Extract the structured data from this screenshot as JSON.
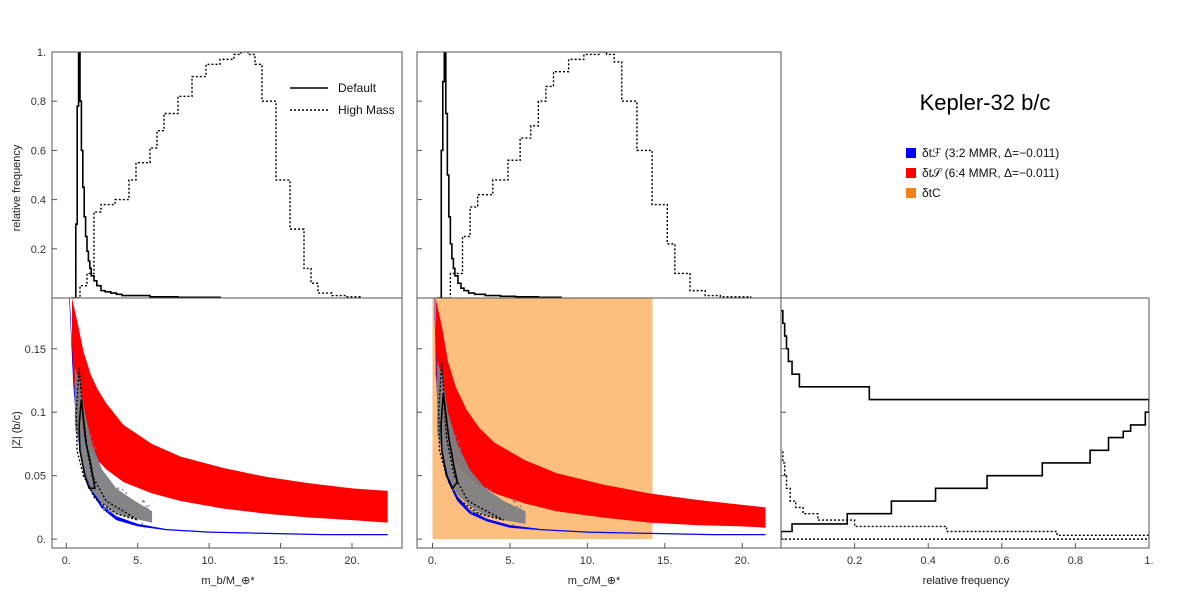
{
  "figure": {
    "title": "Kepler-32 b/c",
    "colors": {
      "red": "#ff0000",
      "blue": "#0000ff",
      "orange_fill": "#fdbf80",
      "orange_swatch": "#f4801a",
      "scatter": "#808080",
      "frame": "#555555"
    },
    "legend_right": [
      {
        "label": "δtℱ (3:2 MMR, Δ=−0.011)",
        "color": "#0000ff"
      },
      {
        "label": "δt𝒮 (6:4 MMR, Δ=−0.011)",
        "color": "#ff0000"
      },
      {
        "label": "δtC",
        "color": "#f4801a"
      }
    ]
  },
  "chart_data": [
    {
      "id": "hist-mb",
      "type": "line",
      "title": "",
      "xlabel": "",
      "ylabel": "relative frequency",
      "xlim": [
        -1,
        24
      ],
      "ylim": [
        0,
        1
      ],
      "yticks": [
        "0.2",
        "0.4",
        "0.6",
        "0.8",
        "1."
      ],
      "legend": [
        "Default",
        "High Mass"
      ],
      "series": [
        {
          "name": "Default",
          "style": "solid",
          "x": [
            0.4,
            0.7,
            0.8,
            0.9,
            1.0,
            1.1,
            1.2,
            1.3,
            1.4,
            1.5,
            1.6,
            1.7,
            1.8,
            2.0,
            2.2,
            2.5,
            2.8,
            3.2,
            3.6,
            4.0,
            5.0,
            6.0,
            8.0,
            11.0
          ],
          "values": [
            0,
            0.3,
            0.78,
            1.0,
            0.8,
            0.6,
            0.45,
            0.33,
            0.25,
            0.19,
            0.15,
            0.12,
            0.09,
            0.07,
            0.05,
            0.03,
            0.025,
            0.02,
            0.015,
            0.01,
            0.01,
            0.005,
            0.003,
            0.002
          ]
        },
        {
          "name": "High Mass",
          "style": "dotted",
          "x": [
            0.8,
            1.0,
            1.5,
            2.0,
            2.5,
            3.5,
            4.5,
            5.0,
            6.0,
            6.5,
            7.0,
            8.0,
            9.0,
            10.0,
            11.0,
            12.0,
            12.5,
            13.0,
            13.5,
            14.0,
            15.0,
            16.0,
            17.0,
            17.5,
            18.0,
            19.0,
            20.0,
            21.0
          ],
          "values": [
            0,
            0.05,
            0.1,
            0.35,
            0.38,
            0.4,
            0.48,
            0.55,
            0.61,
            0.68,
            0.75,
            0.82,
            0.9,
            0.95,
            0.97,
            0.99,
            1.0,
            0.99,
            0.95,
            0.8,
            0.48,
            0.28,
            0.12,
            0.06,
            0.02,
            0.01,
            0.005,
            0
          ]
        }
      ]
    },
    {
      "id": "hist-mc",
      "type": "line",
      "xlim": [
        -1,
        23
      ],
      "ylim": [
        0,
        1
      ],
      "series": [
        {
          "name": "Default",
          "style": "solid",
          "x": [
            0.3,
            0.6,
            0.7,
            0.8,
            0.9,
            1.0,
            1.1,
            1.2,
            1.3,
            1.4,
            1.5,
            1.7,
            1.9,
            2.1,
            2.4,
            2.8,
            3.5,
            4.5,
            5.5,
            7.0,
            8.5
          ],
          "values": [
            0,
            0.6,
            0.88,
            1.0,
            0.75,
            0.5,
            0.33,
            0.22,
            0.16,
            0.12,
            0.09,
            0.06,
            0.04,
            0.03,
            0.02,
            0.015,
            0.01,
            0.007,
            0.005,
            0.003,
            0.002
          ]
        },
        {
          "name": "High Mass",
          "style": "dotted",
          "x": [
            0.6,
            1.2,
            2.0,
            2.5,
            3.0,
            4.0,
            5.0,
            5.8,
            6.5,
            7.0,
            7.5,
            8.0,
            9.0,
            10.0,
            11.0,
            11.5,
            12.0,
            12.5,
            13.5,
            14.5,
            15.5,
            16.0,
            17.0,
            18.0,
            19.0,
            21.0
          ],
          "values": [
            0,
            0.1,
            0.25,
            0.37,
            0.42,
            0.48,
            0.56,
            0.65,
            0.7,
            0.8,
            0.86,
            0.92,
            0.97,
            0.99,
            1.0,
            0.99,
            0.96,
            0.8,
            0.6,
            0.38,
            0.22,
            0.1,
            0.03,
            0.01,
            0.005,
            0
          ]
        }
      ]
    },
    {
      "id": "scatter-mb",
      "type": "area",
      "xlabel": "m_b/M_⊕*",
      "ylabel": "|Z| (b/c)",
      "xlim": [
        -1,
        23.5
      ],
      "ylim": [
        -0.007,
        0.19
      ],
      "xticks": [
        "0.",
        "5.",
        "10.",
        "15.",
        "20."
      ],
      "yticks": [
        "0.",
        "0.05",
        "0.1",
        "0.15"
      ],
      "red_band": {
        "x": [
          0.4,
          0.8,
          1.2,
          1.7,
          2.2,
          2.8,
          4,
          6,
          8,
          11,
          14,
          17,
          20,
          22.5
        ],
        "upper": [
          0.19,
          0.17,
          0.148,
          0.13,
          0.118,
          0.107,
          0.09,
          0.075,
          0.065,
          0.056,
          0.049,
          0.044,
          0.04,
          0.038
        ],
        "lower": [
          0.14,
          0.095,
          0.08,
          0.07,
          0.062,
          0.055,
          0.045,
          0.036,
          0.03,
          0.024,
          0.02,
          0.017,
          0.015,
          0.013
        ]
      },
      "blue_band": {
        "x": [
          0.2,
          0.5,
          0.8,
          1.2,
          1.8,
          2.5,
          3.5,
          5,
          7,
          10,
          14,
          18,
          22.5
        ],
        "upper": [
          0.2,
          0.13,
          0.09,
          0.06,
          0.04,
          0.027,
          0.018,
          0.012,
          0.008,
          0.006,
          0.005,
          0.004,
          0.004
        ],
        "lower": [
          0.19,
          0.12,
          0.08,
          0.055,
          0.036,
          0.024,
          0.015,
          0.01,
          0.007,
          0.005,
          0.004,
          0.003,
          0.003
        ]
      },
      "scatter_region": {
        "x": [
          0.6,
          0.9,
          1.3,
          1.8,
          2.5,
          3.5,
          4.8,
          6
        ],
        "upper": [
          0.135,
          0.125,
          0.1,
          0.075,
          0.055,
          0.04,
          0.03,
          0.022
        ],
        "lower": [
          0.09,
          0.075,
          0.052,
          0.038,
          0.028,
          0.02,
          0.016,
          0.013
        ]
      },
      "contours": [
        {
          "style": "solid",
          "x": [
            1.05,
            0.9,
            0.95,
            1.3,
            1.6,
            2.0,
            1.7,
            1.4,
            1.2,
            1.05
          ],
          "y": [
            0.11,
            0.09,
            0.07,
            0.05,
            0.04,
            0.04,
            0.06,
            0.075,
            0.095,
            0.11
          ]
        },
        {
          "style": "dotted",
          "x": [
            0.9,
            0.7,
            0.75,
            1.2,
            2.0,
            3.5,
            5.0,
            4.0,
            2.8,
            1.8,
            1.3,
            0.9
          ],
          "y": [
            0.135,
            0.1,
            0.07,
            0.05,
            0.032,
            0.02,
            0.015,
            0.022,
            0.03,
            0.05,
            0.08,
            0.135
          ]
        }
      ]
    },
    {
      "id": "scatter-mc",
      "type": "area",
      "xlabel": "m_c/M_⊕*",
      "xlim": [
        -1,
        22.5
      ],
      "ylim": [
        -0.007,
        0.19
      ],
      "xticks": [
        "0.",
        "5.",
        "10.",
        "15.",
        "20."
      ],
      "orange_rect": {
        "x": [
          0,
          14.2
        ],
        "y": [
          0,
          0.19
        ]
      },
      "red_band": {
        "x": [
          0.2,
          0.6,
          1,
          1.5,
          2.2,
          3,
          4,
          6,
          8,
          11,
          14,
          17,
          20,
          21.5
        ],
        "upper": [
          0.19,
          0.168,
          0.14,
          0.12,
          0.102,
          0.088,
          0.076,
          0.062,
          0.052,
          0.043,
          0.036,
          0.031,
          0.027,
          0.025
        ],
        "lower": [
          0.13,
          0.09,
          0.072,
          0.06,
          0.05,
          0.043,
          0.036,
          0.028,
          0.022,
          0.017,
          0.013,
          0.011,
          0.01,
          0.009
        ]
      },
      "blue_band": {
        "x": [
          0.1,
          0.3,
          0.6,
          1,
          1.6,
          2.4,
          3.5,
          5,
          7,
          10,
          14,
          18,
          21.5
        ],
        "upper": [
          0.2,
          0.12,
          0.075,
          0.05,
          0.034,
          0.023,
          0.016,
          0.011,
          0.008,
          0.006,
          0.005,
          0.004,
          0.004
        ],
        "lower": [
          0.19,
          0.11,
          0.068,
          0.045,
          0.03,
          0.02,
          0.014,
          0.009,
          0.007,
          0.005,
          0.004,
          0.003,
          0.003
        ]
      },
      "scatter_region": {
        "x": [
          0.3,
          0.6,
          1.0,
          1.6,
          2.4,
          3.4,
          4.6,
          6
        ],
        "upper": [
          0.14,
          0.13,
          0.1,
          0.075,
          0.055,
          0.04,
          0.03,
          0.022
        ],
        "lower": [
          0.085,
          0.07,
          0.05,
          0.035,
          0.026,
          0.019,
          0.015,
          0.012
        ]
      },
      "contours": [
        {
          "style": "solid",
          "x": [
            0.7,
            0.55,
            0.6,
            0.9,
            1.3,
            1.6,
            1.35,
            1.05,
            0.85,
            0.7
          ],
          "y": [
            0.115,
            0.09,
            0.07,
            0.05,
            0.04,
            0.045,
            0.06,
            0.08,
            0.1,
            0.115
          ]
        },
        {
          "style": "dotted",
          "x": [
            0.6,
            0.4,
            0.45,
            0.9,
            1.6,
            3.0,
            4.6,
            3.5,
            2.3,
            1.4,
            0.9,
            0.6
          ],
          "y": [
            0.14,
            0.1,
            0.07,
            0.05,
            0.032,
            0.02,
            0.015,
            0.022,
            0.03,
            0.05,
            0.08,
            0.14
          ]
        }
      ]
    },
    {
      "id": "hist-z",
      "type": "line",
      "xlabel": "relative frequency",
      "xlim": [
        0,
        1
      ],
      "ylim": [
        -0.007,
        0.19
      ],
      "xticks": [
        "0.2",
        "0.4",
        "0.6",
        "0.8",
        "1."
      ],
      "series": [
        {
          "name": "Default",
          "style": "solid",
          "orientation": "horizontal",
          "y": [
            0.0,
            0.006,
            0.012,
            0.02,
            0.03,
            0.04,
            0.05,
            0.06,
            0.07,
            0.08,
            0.085,
            0.09,
            0.1,
            0.11,
            0.12,
            0.13,
            0.14,
            0.15,
            0.16,
            0.17,
            0.18
          ],
          "values": [
            0,
            0.03,
            0.18,
            0.3,
            0.42,
            0.56,
            0.71,
            0.84,
            0.89,
            0.93,
            0.95,
            0.99,
            1.0,
            0.24,
            0.05,
            0.03,
            0.02,
            0.015,
            0.01,
            0.005,
            0
          ]
        },
        {
          "name": "High Mass",
          "style": "dotted",
          "orientation": "horizontal",
          "y": [
            0.0,
            0.003,
            0.006,
            0.01,
            0.015,
            0.02,
            0.025,
            0.03,
            0.04,
            0.05,
            0.06,
            0.07
          ],
          "values": [
            1.0,
            0.75,
            0.45,
            0.2,
            0.1,
            0.06,
            0.04,
            0.025,
            0.015,
            0.01,
            0.005,
            0.002
          ]
        }
      ]
    }
  ]
}
